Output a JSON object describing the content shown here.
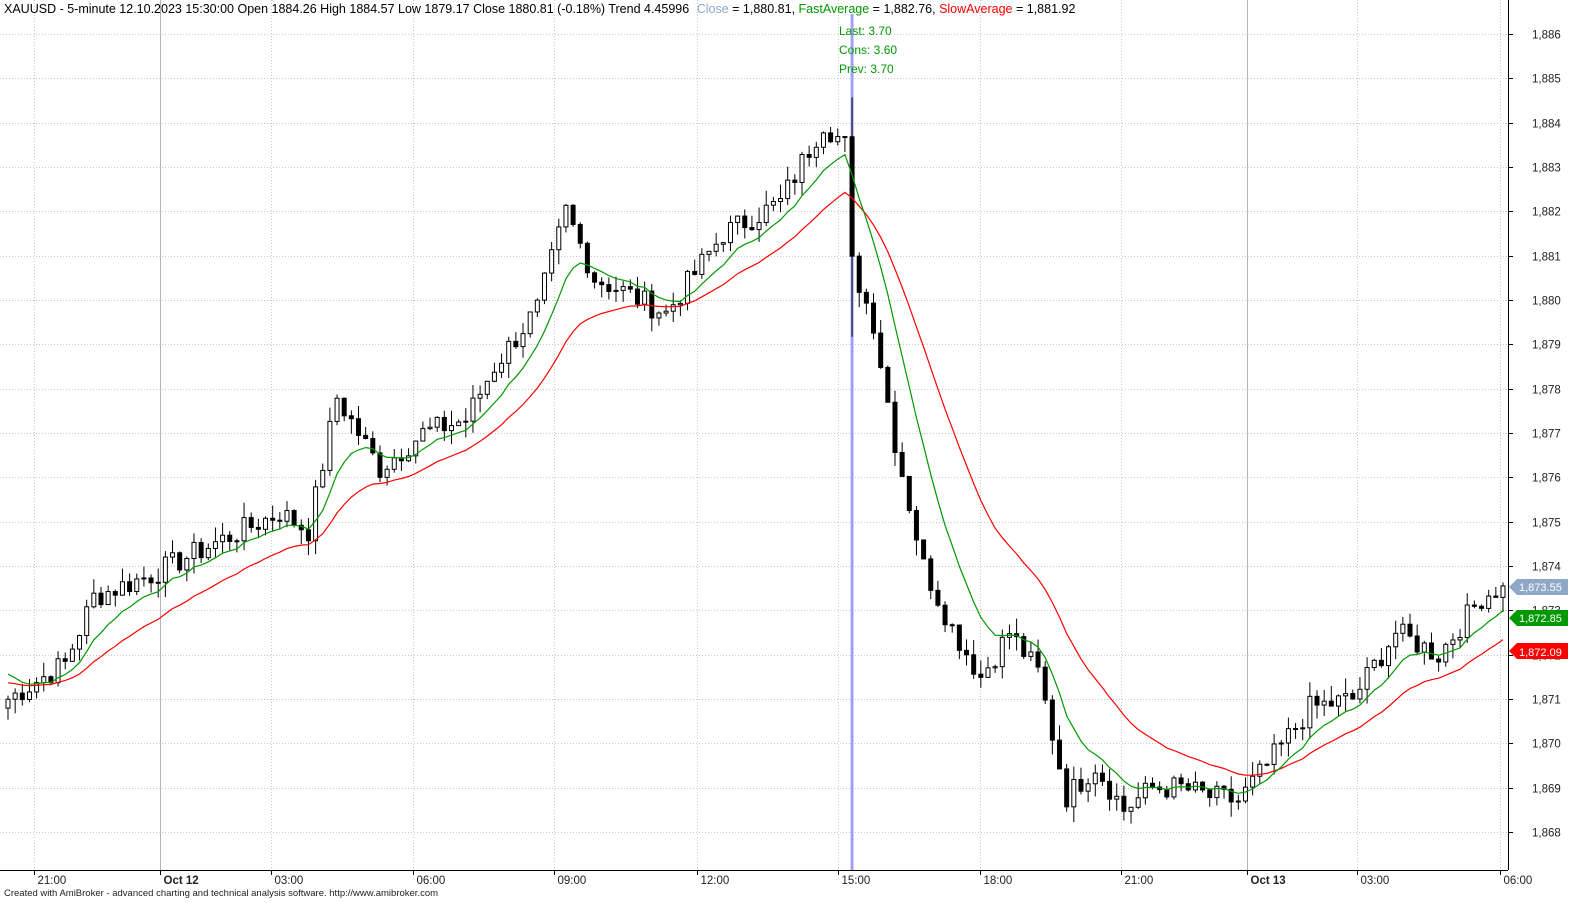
{
  "header": {
    "symbol_line": "XAUUSD - 5-minute 12.10.2023 15:30:00 Open 1884.26 High 1884.57 Low 1879.17 Close 1880.81 (-0.18%) Trend 4.45996",
    "close_label": "Close",
    "close_value": " = 1,880.81, ",
    "fast_label": "FastAverage",
    "fast_value": " = 1,882.76, ",
    "slow_label": "SlowAverage",
    "slow_value": " = 1,881.92"
  },
  "annotations": {
    "last": "Last: 3.70",
    "cons": "Cons: 3.60",
    "prev": "Prev: 3.70"
  },
  "price_tags": {
    "close": "1,873.55",
    "fast": "1,872.85",
    "slow": "1,872.09"
  },
  "footer": "Created with AmiBroker - advanced charting and technical analysis software. http://www.amibroker.com",
  "colors": {
    "close": "#8fa8c8",
    "fast": "#009900",
    "slow": "#ff0000",
    "cursor": "#a0a0ff",
    "candle": "#000000"
  },
  "chart_data": {
    "type": "candlestick",
    "title": "XAUUSD - 5-minute",
    "y_ticks": [
      "1,868",
      "1,869",
      "1,870",
      "1,871",
      "1,872",
      "1,873",
      "1,874",
      "1,875",
      "1,876",
      "1,877",
      "1,878",
      "1,879",
      "1,880",
      "1,881",
      "1,882",
      "1,883",
      "1,884",
      "1,885",
      "1,886"
    ],
    "ylim": [
      1867.5,
      1886.6
    ],
    "x_ticks": [
      "21:00",
      "Oct 12",
      "03:00",
      "06:00",
      "09:00",
      "12:00",
      "15:00",
      "18:00",
      "21:00",
      "Oct 13",
      "03:00",
      "06:00"
    ],
    "x_tick_bold": [
      false,
      true,
      false,
      false,
      false,
      false,
      false,
      false,
      false,
      true,
      false,
      false
    ],
    "bars": 210,
    "cursor_bar": 118,
    "close_anchors": [
      [
        0,
        1871.0
      ],
      [
        8,
        1871.8
      ],
      [
        12,
        1873.3
      ],
      [
        20,
        1873.8
      ],
      [
        30,
        1874.6
      ],
      [
        38,
        1875.2
      ],
      [
        42,
        1874.8
      ],
      [
        46,
        1877.8
      ],
      [
        52,
        1876.2
      ],
      [
        58,
        1877.0
      ],
      [
        64,
        1877.3
      ],
      [
        68,
        1878.5
      ],
      [
        74,
        1879.8
      ],
      [
        78,
        1882.0
      ],
      [
        82,
        1880.5
      ],
      [
        86,
        1880.2
      ],
      [
        92,
        1879.7
      ],
      [
        100,
        1881.5
      ],
      [
        108,
        1882.2
      ],
      [
        114,
        1884.0
      ],
      [
        117,
        1883.5
      ],
      [
        118,
        1880.8
      ],
      [
        121,
        1879.5
      ],
      [
        124,
        1876.8
      ],
      [
        128,
        1874.0
      ],
      [
        132,
        1872.6
      ],
      [
        136,
        1871.5
      ],
      [
        140,
        1872.5
      ],
      [
        144,
        1871.6
      ],
      [
        148,
        1868.8
      ],
      [
        152,
        1869.5
      ],
      [
        156,
        1868.5
      ],
      [
        160,
        1869.0
      ],
      [
        164,
        1869.0
      ],
      [
        168,
        1868.8
      ],
      [
        172,
        1868.7
      ],
      [
        176,
        1869.5
      ],
      [
        182,
        1870.8
      ],
      [
        188,
        1871.0
      ],
      [
        194,
        1872.5
      ],
      [
        200,
        1872.0
      ],
      [
        206,
        1873.3
      ],
      [
        209,
        1873.55
      ]
    ],
    "fast_average_end": 1872.85,
    "slow_average_end": 1872.09
  }
}
